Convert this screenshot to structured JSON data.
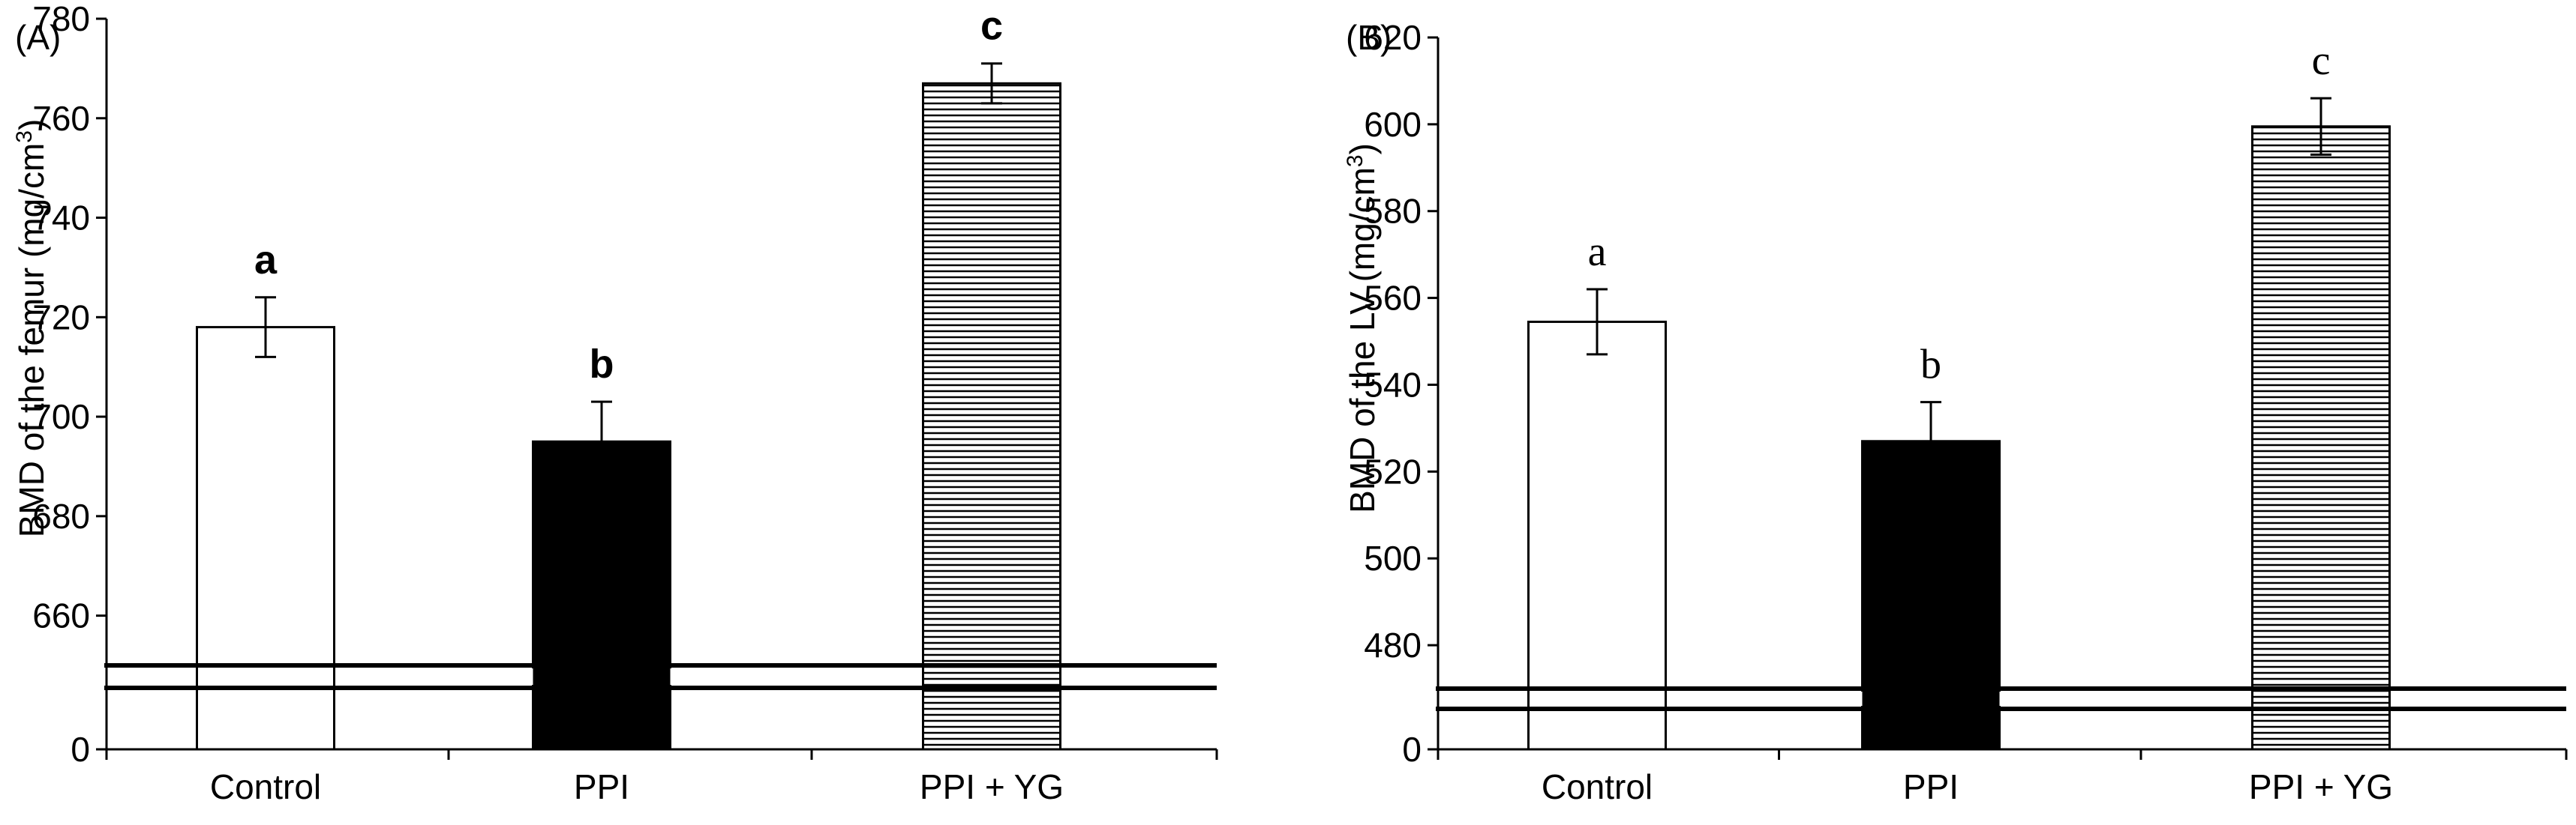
{
  "figure": {
    "colors": {
      "ink": "#000000",
      "control": "#ffffff",
      "ppi": "#000000",
      "ppi_yg": "hatch-horizontal"
    }
  },
  "chart_data": [
    {
      "type": "bar",
      "panel_label": "(A)",
      "title": "",
      "xlabel": "",
      "ylabel": "BMD of the femur (mg/cm",
      "ylabel_sup": "3",
      "ylabel_close": ")",
      "ylim": [
        650,
        780
      ],
      "axis_break": {
        "lower_tick": 0,
        "break_below": 655
      },
      "yticks": [
        0,
        660,
        680,
        700,
        720,
        740,
        760,
        780
      ],
      "ytick_labels": [
        "0",
        "660",
        "680",
        "700",
        "720",
        "740",
        "760",
        "780"
      ],
      "categories": [
        "Control",
        "PPI",
        "PPI + YG"
      ],
      "values": [
        718,
        695,
        767
      ],
      "errors": [
        6,
        8,
        4
      ],
      "significance": [
        "a",
        "b",
        "c"
      ],
      "fills": [
        "white",
        "black",
        "hatch"
      ],
      "grid": false
    },
    {
      "type": "bar",
      "panel_label": "(B)",
      "title": "",
      "xlabel": "",
      "ylabel": "BMD of the LV (mg/cm",
      "ylabel_sup": "3",
      "ylabel_close": ")",
      "ylim": [
        470,
        620
      ],
      "axis_break": {
        "lower_tick": 0,
        "break_below": 475
      },
      "yticks": [
        0,
        480,
        500,
        520,
        540,
        560,
        580,
        600,
        620
      ],
      "ytick_labels": [
        "0",
        "480",
        "500",
        "520",
        "540",
        "560",
        "580",
        "600",
        "620"
      ],
      "categories": [
        "Control",
        "PPI",
        "PPI + YG"
      ],
      "values": [
        554.5,
        527,
        599.5
      ],
      "errors": [
        7.5,
        9,
        6.5
      ],
      "significance": [
        "a",
        "b",
        "c"
      ],
      "fills": [
        "white",
        "black",
        "hatch"
      ],
      "grid": false
    }
  ]
}
